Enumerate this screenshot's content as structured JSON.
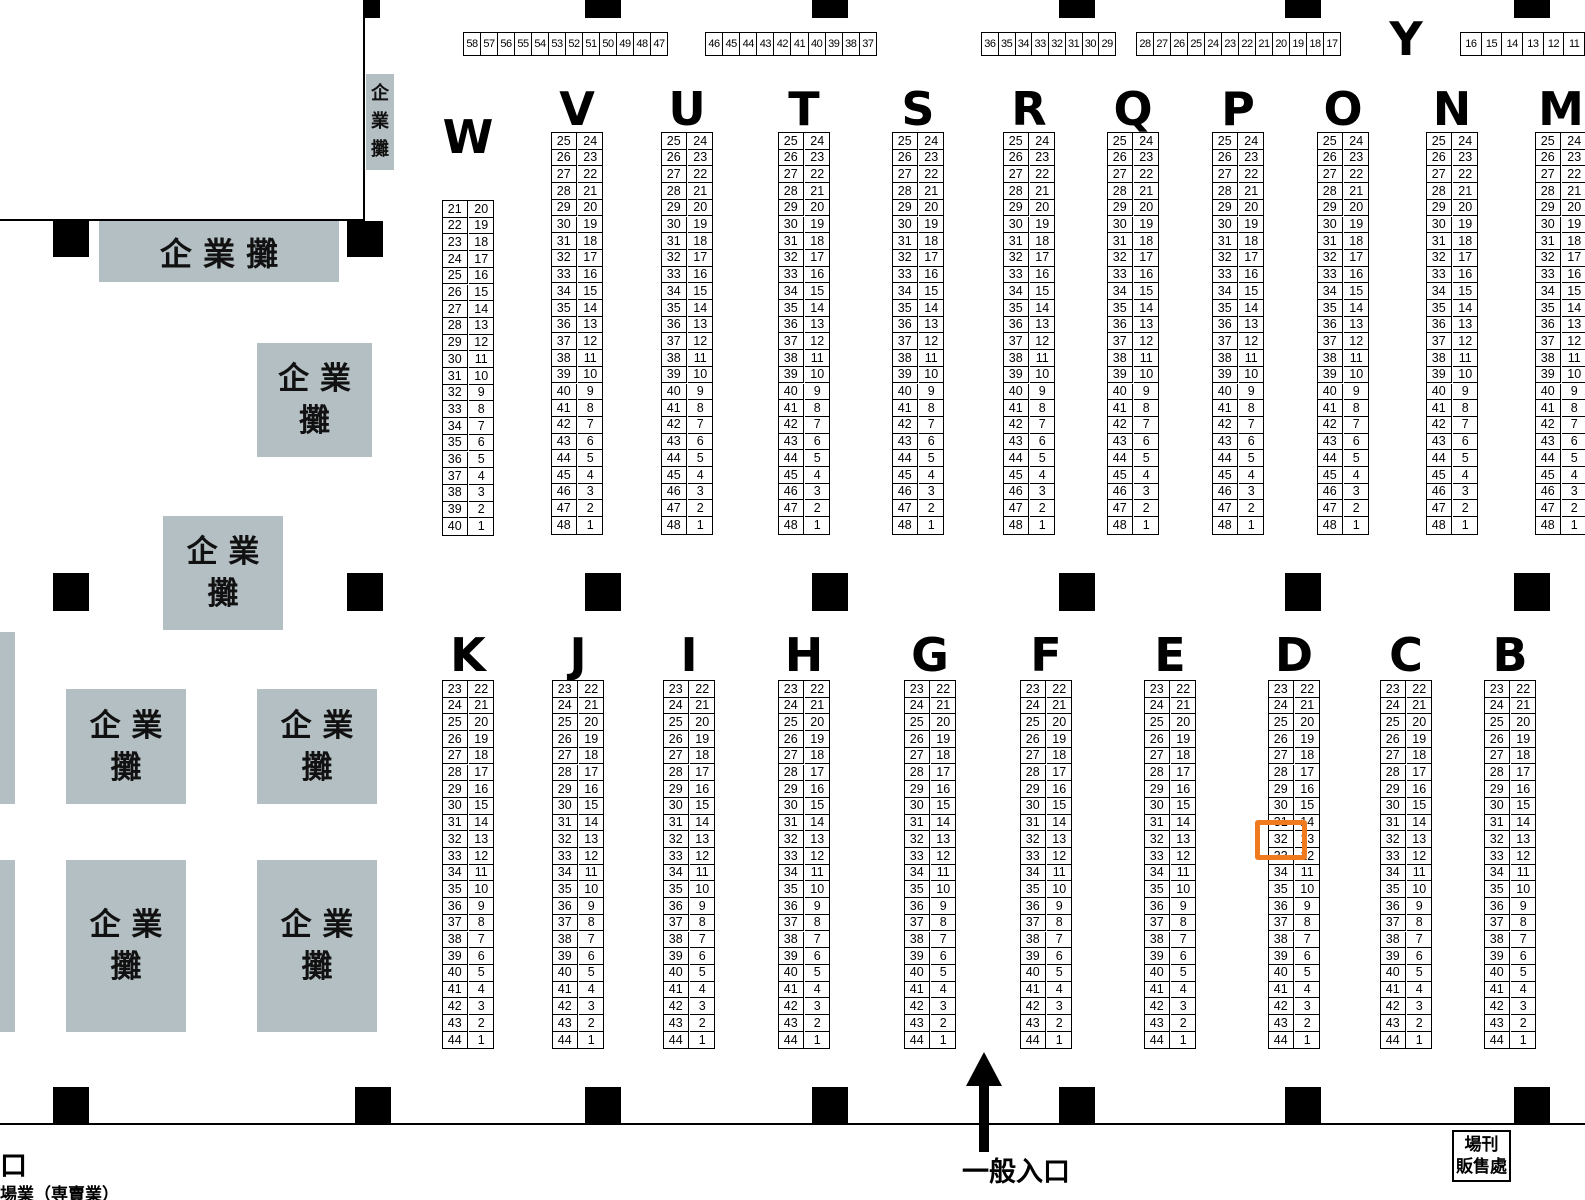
{
  "corporate_booth_label": "企 業 攤",
  "corporate_booth_label_stacked": "企 業\n攤",
  "corporate_booth_label_vertical": "企\n業\n攤",
  "entrance_label": "一般入口",
  "entrance_left_fragment": "口",
  "bottom_left_fragment": "場業（専賣業）",
  "program_sales_label": "場刊\n販售處",
  "top_strips": [
    {
      "numbers": [
        "58",
        "57",
        "56",
        "55",
        "54",
        "53",
        "52",
        "51",
        "50",
        "49",
        "48",
        "47"
      ]
    },
    {
      "numbers": [
        "46",
        "45",
        "44",
        "43",
        "42",
        "41",
        "40",
        "39",
        "38",
        "37"
      ]
    },
    {
      "numbers": [
        "36",
        "35",
        "34",
        "33",
        "32",
        "31",
        "30",
        "29"
      ]
    },
    {
      "numbers": [
        "28",
        "27",
        "26",
        "25",
        "24",
        "23",
        "22",
        "21",
        "20",
        "19",
        "18",
        "17"
      ]
    },
    {
      "numbers": [
        "16",
        "15",
        "14",
        "13",
        "12",
        "11"
      ]
    }
  ],
  "top_row_label": "Y",
  "upper_rows": [
    {
      "label": "W",
      "start": 21,
      "end": 40,
      "right_top": 20
    },
    {
      "label": "V",
      "start": 25,
      "end": 48,
      "right_top": 24
    },
    {
      "label": "U",
      "start": 25,
      "end": 48,
      "right_top": 24
    },
    {
      "label": "T",
      "start": 25,
      "end": 48,
      "right_top": 24
    },
    {
      "label": "S",
      "start": 25,
      "end": 48,
      "right_top": 24
    },
    {
      "label": "R",
      "start": 25,
      "end": 48,
      "right_top": 24
    },
    {
      "label": "Q",
      "start": 25,
      "end": 48,
      "right_top": 24
    },
    {
      "label": "P",
      "start": 25,
      "end": 48,
      "right_top": 24
    },
    {
      "label": "O",
      "start": 25,
      "end": 48,
      "right_top": 24
    },
    {
      "label": "N",
      "start": 25,
      "end": 48,
      "right_top": 24
    },
    {
      "label": "M",
      "start": 25,
      "end": 48,
      "right_top": 24
    }
  ],
  "lower_rows": [
    {
      "label": "K",
      "start": 23,
      "end": 44,
      "right_top": 22
    },
    {
      "label": "J",
      "start": 23,
      "end": 44,
      "right_top": 22
    },
    {
      "label": "I",
      "start": 23,
      "end": 44,
      "right_top": 22
    },
    {
      "label": "H",
      "start": 23,
      "end": 44,
      "right_top": 22
    },
    {
      "label": "G",
      "start": 23,
      "end": 44,
      "right_top": 22
    },
    {
      "label": "F",
      "start": 23,
      "end": 44,
      "right_top": 22
    },
    {
      "label": "E",
      "start": 23,
      "end": 44,
      "right_top": 22
    },
    {
      "label": "D",
      "start": 23,
      "end": 44,
      "right_top": 22
    },
    {
      "label": "C",
      "start": 23,
      "end": 44,
      "right_top": 22
    },
    {
      "label": "B",
      "start": 23,
      "end": 44,
      "right_top": 22
    }
  ],
  "highlighted_booth": {
    "row": "D",
    "number": "32"
  },
  "colors": {
    "corporate_booth": "#b4bfc3",
    "highlight": "#f07a1e",
    "pillar": "#000000"
  },
  "icons": {
    "entrance_arrow": "arrow-up-icon"
  }
}
